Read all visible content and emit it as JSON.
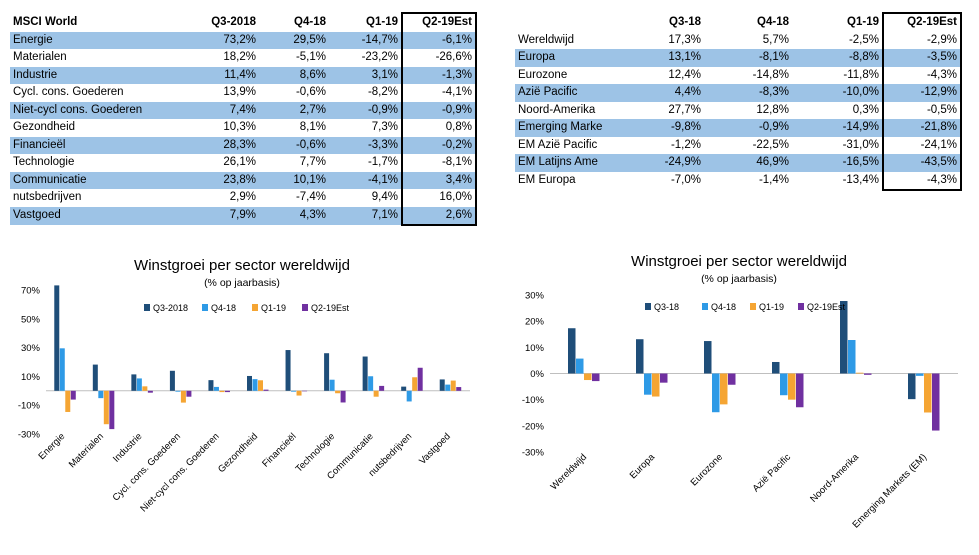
{
  "table1": {
    "headers": [
      "MSCI World",
      "Q3-2018",
      "Q4-18",
      "Q1-19",
      "Q2-19Est"
    ],
    "rows": [
      [
        "Energie",
        "73,2%",
        "29,5%",
        "-14,7%",
        "-6,1%"
      ],
      [
        "Materialen",
        "18,2%",
        "-5,1%",
        "-23,2%",
        "-26,6%"
      ],
      [
        "Industrie",
        "11,4%",
        "8,6%",
        "3,1%",
        "-1,3%"
      ],
      [
        "Cycl. cons. Goederen",
        "13,9%",
        "-0,6%",
        "-8,2%",
        "-4,1%"
      ],
      [
        "Niet-cycl cons. Goederen",
        "7,4%",
        "2,7%",
        "-0,9%",
        "-0,9%"
      ],
      [
        "Gezondheid",
        "10,3%",
        "8,1%",
        "7,3%",
        "0,8%"
      ],
      [
        "Financieël",
        "28,3%",
        "-0,6%",
        "-3,3%",
        "-0,2%"
      ],
      [
        "Technologie",
        "26,1%",
        "7,7%",
        "-1,7%",
        "-8,1%"
      ],
      [
        "Communicatie",
        "23,8%",
        "10,1%",
        "-4,1%",
        "3,4%"
      ],
      [
        "nutsbedrijven",
        "2,9%",
        "-7,4%",
        "9,4%",
        "16,0%"
      ],
      [
        "Vastgoed",
        "7,9%",
        "4,3%",
        "7,1%",
        "2,6%"
      ]
    ]
  },
  "table2": {
    "headers": [
      "",
      "Q3-18",
      "Q4-18",
      "Q1-19",
      "Q2-19Est"
    ],
    "rows": [
      [
        "Wereldwijd",
        "17,3%",
        "5,7%",
        "-2,5%",
        "-2,9%"
      ],
      [
        "Europa",
        "13,1%",
        "-8,1%",
        "-8,8%",
        "-3,5%"
      ],
      [
        "Eurozone",
        "12,4%",
        "-14,8%",
        "-11,8%",
        "-4,3%"
      ],
      [
        "Azië Pacific",
        "4,4%",
        "-8,3%",
        "-10,0%",
        "-12,9%"
      ],
      [
        "Noord-Amerika",
        "27,7%",
        "12,8%",
        "0,3%",
        "-0,5%"
      ],
      [
        "Emerging Marke",
        "-9,8%",
        "-0,9%",
        "-14,9%",
        "-21,8%"
      ],
      [
        "EM Azië Pacific",
        "-1,2%",
        "-22,5%",
        "-31,0%",
        "-24,1%"
      ],
      [
        "EM Latijns Ame",
        "-24,9%",
        "46,9%",
        "-16,5%",
        "-43,5%"
      ],
      [
        "EM Europa",
        "-7,0%",
        "-1,4%",
        "-13,4%",
        "-4,3%"
      ]
    ]
  },
  "chart_data": [
    {
      "type": "bar",
      "title": "Winstgroei per sector wereldwijd",
      "subtitle": "(% op jaarbasis)",
      "categories": [
        "Energie",
        "Materialen",
        "Industrie",
        "Cycl. cons. Goederen",
        "Niet-cycl cons. Goederen",
        "Gezondheid",
        "Financieël",
        "Technologie",
        "Communicatie",
        "nutsbedrijven",
        "Vastgoed"
      ],
      "series": [
        {
          "name": "Q3-2018",
          "values": [
            73.2,
            18.2,
            11.4,
            13.9,
            7.4,
            10.3,
            28.3,
            26.1,
            23.8,
            2.9,
            7.9
          ]
        },
        {
          "name": "Q4-18",
          "values": [
            29.5,
            -5.1,
            8.6,
            -0.6,
            2.7,
            8.1,
            -0.6,
            7.7,
            10.1,
            -7.4,
            4.3
          ]
        },
        {
          "name": "Q1-19",
          "values": [
            -14.7,
            -23.2,
            3.1,
            -8.2,
            -0.9,
            7.3,
            -3.3,
            -1.7,
            -4.1,
            9.4,
            7.1
          ]
        },
        {
          "name": "Q2-19Est",
          "values": [
            -6.1,
            -26.6,
            -1.3,
            -4.1,
            -0.9,
            0.8,
            -0.2,
            -8.1,
            3.4,
            16.0,
            2.6
          ]
        }
      ],
      "ylim": [
        -30,
        70
      ],
      "yticks": [
        "70%",
        "50%",
        "30%",
        "10%",
        "-10%",
        "-30%"
      ],
      "ytick_values": [
        70,
        50,
        30,
        10,
        -10,
        -30
      ],
      "legend": "top",
      "grid": false
    },
    {
      "type": "bar",
      "title": "Winstgroei per sector wereldwijd",
      "subtitle": "(% op jaarbasis)",
      "categories": [
        "Wereldwijd",
        "Europa",
        "Eurozone",
        "Azië Pacific",
        "Noord-Amerika",
        "Emerging Markets (EM)"
      ],
      "series": [
        {
          "name": "Q3-18",
          "values": [
            17.3,
            13.1,
            12.4,
            4.4,
            27.7,
            -9.8
          ]
        },
        {
          "name": "Q4-18",
          "values": [
            5.7,
            -8.1,
            -14.8,
            -8.3,
            12.8,
            -0.9
          ]
        },
        {
          "name": "Q1-19",
          "values": [
            -2.5,
            -8.8,
            -11.8,
            -10.0,
            0.3,
            -14.9
          ]
        },
        {
          "name": "Q2-19Est",
          "values": [
            -2.9,
            -3.5,
            -4.3,
            -12.9,
            -0.5,
            -21.8
          ]
        }
      ],
      "ylim": [
        -30,
        30
      ],
      "yticks": [
        "30%",
        "20%",
        "10%",
        "0%",
        "-10%",
        "-20%",
        "-30%"
      ],
      "ytick_values": [
        30,
        20,
        10,
        0,
        -10,
        -20,
        -30
      ],
      "legend": "top",
      "grid": false
    }
  ],
  "colors": {
    "series": [
      "#1f4e79",
      "#2e9ae6",
      "#f5a533",
      "#7030a0"
    ],
    "row_shade": "#9dc3e6"
  }
}
